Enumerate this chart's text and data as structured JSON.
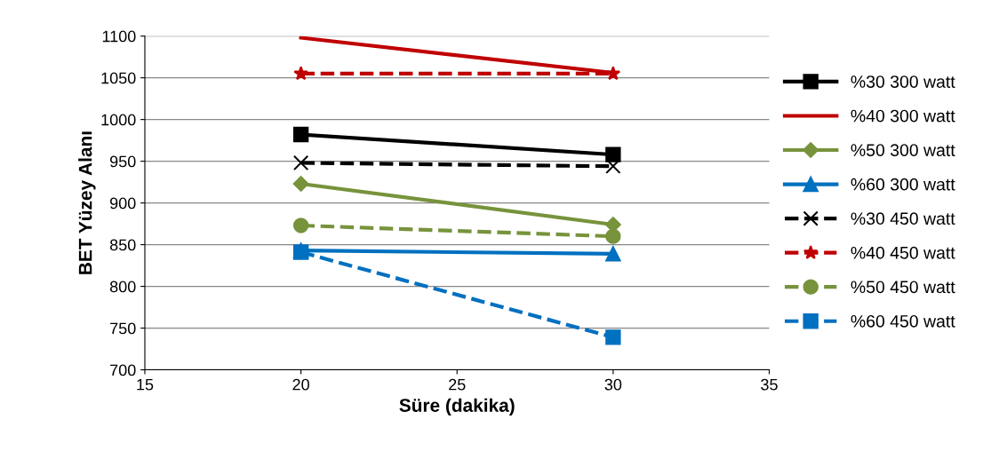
{
  "chart_data": {
    "type": "line",
    "xlabel": "Süre (dakika)",
    "ylabel": "BET Yüzey Alanı",
    "xlim": [
      15,
      35
    ],
    "xticks": [
      15,
      20,
      25,
      30,
      35
    ],
    "ylim": [
      700,
      1100
    ],
    "yticks": [
      700,
      750,
      800,
      850,
      900,
      950,
      1000,
      1050,
      1100
    ],
    "grid": "y",
    "legend": "right",
    "x": [
      20,
      30
    ],
    "series": [
      {
        "name": "%30 300 watt",
        "color": "#000000",
        "values": [
          982,
          958
        ],
        "marker": "square",
        "line_style": "solid"
      },
      {
        "name": "%40 300 watt",
        "color": "#c00000",
        "values": [
          1098,
          1056
        ],
        "marker": "none",
        "line_style": "solid"
      },
      {
        "name": "%50 300 watt",
        "color": "#77933c",
        "values": [
          923,
          874
        ],
        "marker": "diamond",
        "line_style": "solid"
      },
      {
        "name": "%60 300 watt",
        "color": "#0070c0",
        "values": [
          843,
          839
        ],
        "marker": "triangle",
        "line_style": "solid"
      },
      {
        "name": "%30 450 watt",
        "color": "#000000",
        "values": [
          948,
          944
        ],
        "marker": "cross",
        "line_style": "dashed"
      },
      {
        "name": "%40 450 watt",
        "color": "#c00000",
        "values": [
          1055,
          1055
        ],
        "marker": "star",
        "line_style": "dashed"
      },
      {
        "name": "%50 450 watt",
        "color": "#77933c",
        "values": [
          873,
          860
        ],
        "marker": "circle",
        "line_style": "dashed"
      },
      {
        "name": "%60 450 watt",
        "color": "#0070c0",
        "values": [
          841,
          739
        ],
        "marker": "square",
        "line_style": "dashed"
      }
    ]
  }
}
